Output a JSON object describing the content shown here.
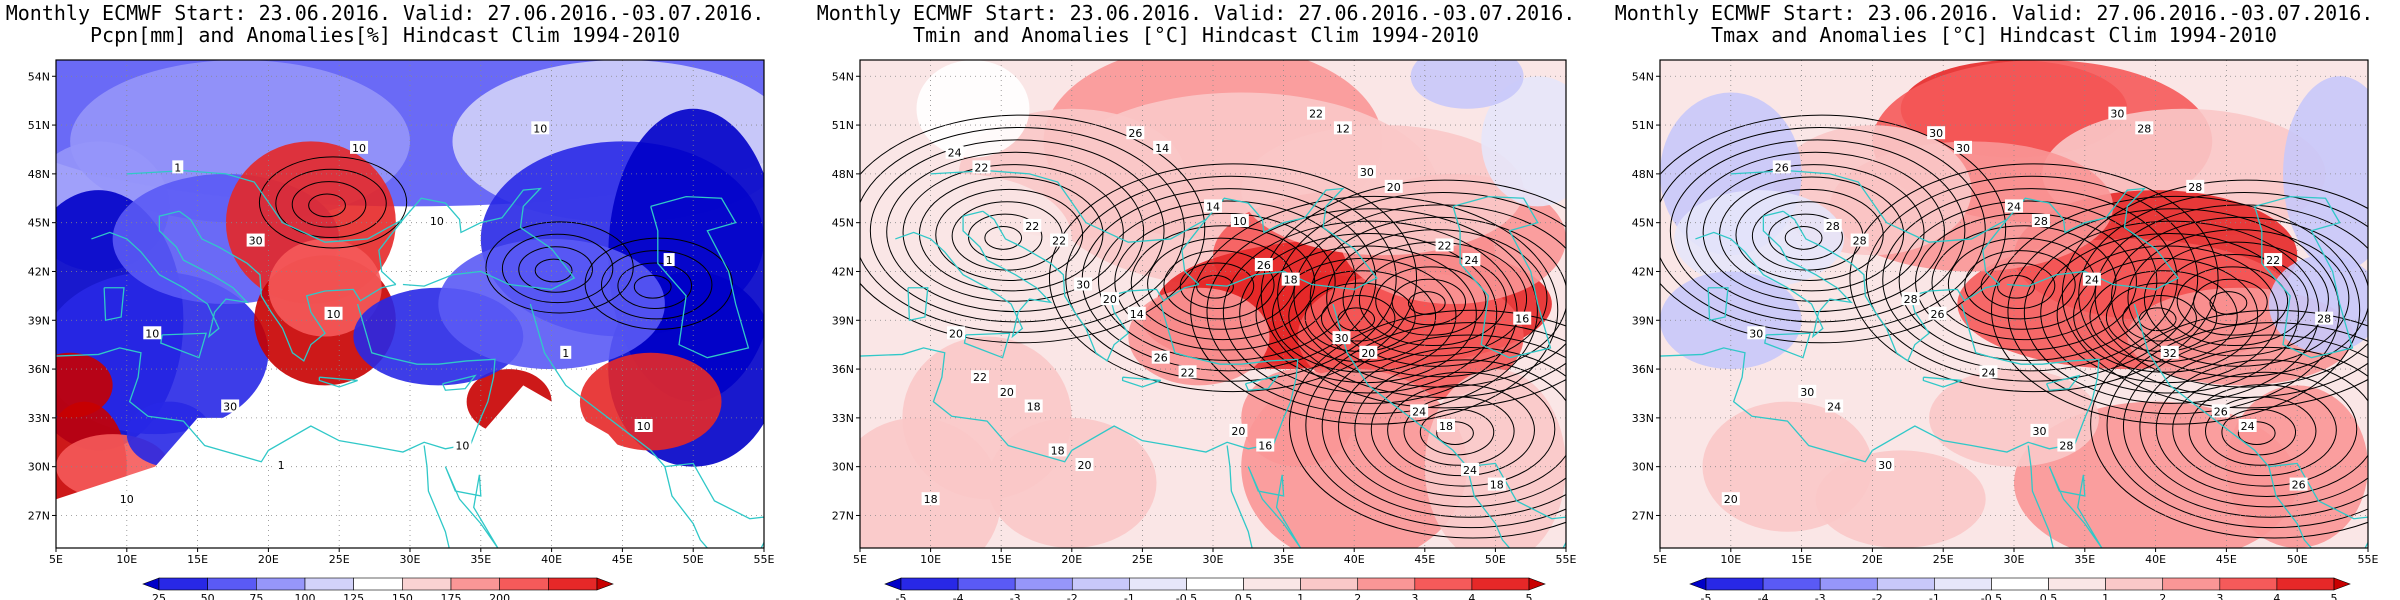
{
  "panels": [
    {
      "title_line1": "Monthly ECMWF Start: 23.06.2016. Valid: 27.06.2016.-03.07.2016.",
      "title_line2": "Pcpn[mm] and Anomalies[%] Hindcast Clim 1994-2010",
      "variable": "precipitation",
      "colorbar": {
        "labels": [
          "25",
          "50",
          "75",
          "100",
          "125",
          "150",
          "175",
          "200"
        ],
        "colors": [
          "#0000c8",
          "#2828e6",
          "#5a5af5",
          "#9696fa",
          "#d2d2fa",
          "#ffffff",
          "#fad2d2",
          "#fa9696",
          "#f55a5a",
          "#e62828",
          "#c80000"
        ]
      },
      "contour_labels": [
        "10",
        "30",
        "10",
        "10",
        "10",
        "10",
        "10",
        "30",
        "10",
        "10",
        "1",
        "1",
        "1",
        "1"
      ]
    },
    {
      "title_line1": "Monthly ECMWF Start: 23.06.2016. Valid: 27.06.2016.-03.07.2016.",
      "title_line2": "Tmin and Anomalies [°C] Hindcast Clim 1994-2010",
      "variable": "tmin",
      "colorbar": {
        "labels": [
          "-5",
          "-4",
          "-3",
          "-2",
          "-1",
          "-0.5",
          "0.5",
          "1",
          "2",
          "3",
          "4",
          "5"
        ],
        "colors": [
          "#0000c8",
          "#2828e6",
          "#5a5af5",
          "#9696fa",
          "#c8c8fa",
          "#e6e6fa",
          "#ffffff",
          "#fae6e6",
          "#fac8c8",
          "#fa9696",
          "#f55a5a",
          "#e62828",
          "#c80000"
        ]
      },
      "contour_labels": [
        "18",
        "18",
        "14",
        "10",
        "12",
        "18",
        "20",
        "22",
        "14",
        "16",
        "20",
        "24",
        "22",
        "20",
        "22",
        "18",
        "20",
        "18",
        "20",
        "20",
        "14",
        "22",
        "24",
        "16",
        "22",
        "26",
        "20",
        "30",
        "22",
        "24",
        "18",
        "26",
        "26",
        "30",
        "24",
        "22",
        "30"
      ]
    },
    {
      "title_line1": "Monthly ECMWF Start: 23.06.2016. Valid: 27.06.2016.-03.07.2016.",
      "title_line2": "Tmax and Anomalies [°C] Hindcast Clim 1994-2010",
      "variable": "tmax",
      "colorbar": {
        "labels": [
          "-5",
          "-4",
          "-3",
          "-2",
          "-1",
          "-0.5",
          "0.5",
          "1",
          "2",
          "3",
          "4",
          "5"
        ],
        "colors": [
          "#0000c8",
          "#2828e6",
          "#5a5af5",
          "#9696fa",
          "#c8c8fa",
          "#e6e6fa",
          "#ffffff",
          "#fae6e6",
          "#fac8c8",
          "#fa9696",
          "#f55a5a",
          "#e62828",
          "#c80000"
        ]
      },
      "contour_labels": [
        "20",
        "24",
        "26",
        "28",
        "28",
        "24",
        "30",
        "28",
        "30",
        "28",
        "32",
        "22",
        "26",
        "30",
        "24",
        "24",
        "28",
        "26",
        "30",
        "28",
        "24",
        "30",
        "26",
        "28",
        "28",
        "30",
        "30"
      ]
    }
  ],
  "lat_labels": [
    "54N",
    "51N",
    "48N",
    "45N",
    "42N",
    "39N",
    "36N",
    "33N",
    "30N",
    "27N"
  ],
  "lon_labels": [
    "5E",
    "10E",
    "15E",
    "20E",
    "25E",
    "30E",
    "35E",
    "40E",
    "45E",
    "50E",
    "55E"
  ],
  "colors": {
    "coast": "#30c8c8",
    "contour": "#000000"
  }
}
